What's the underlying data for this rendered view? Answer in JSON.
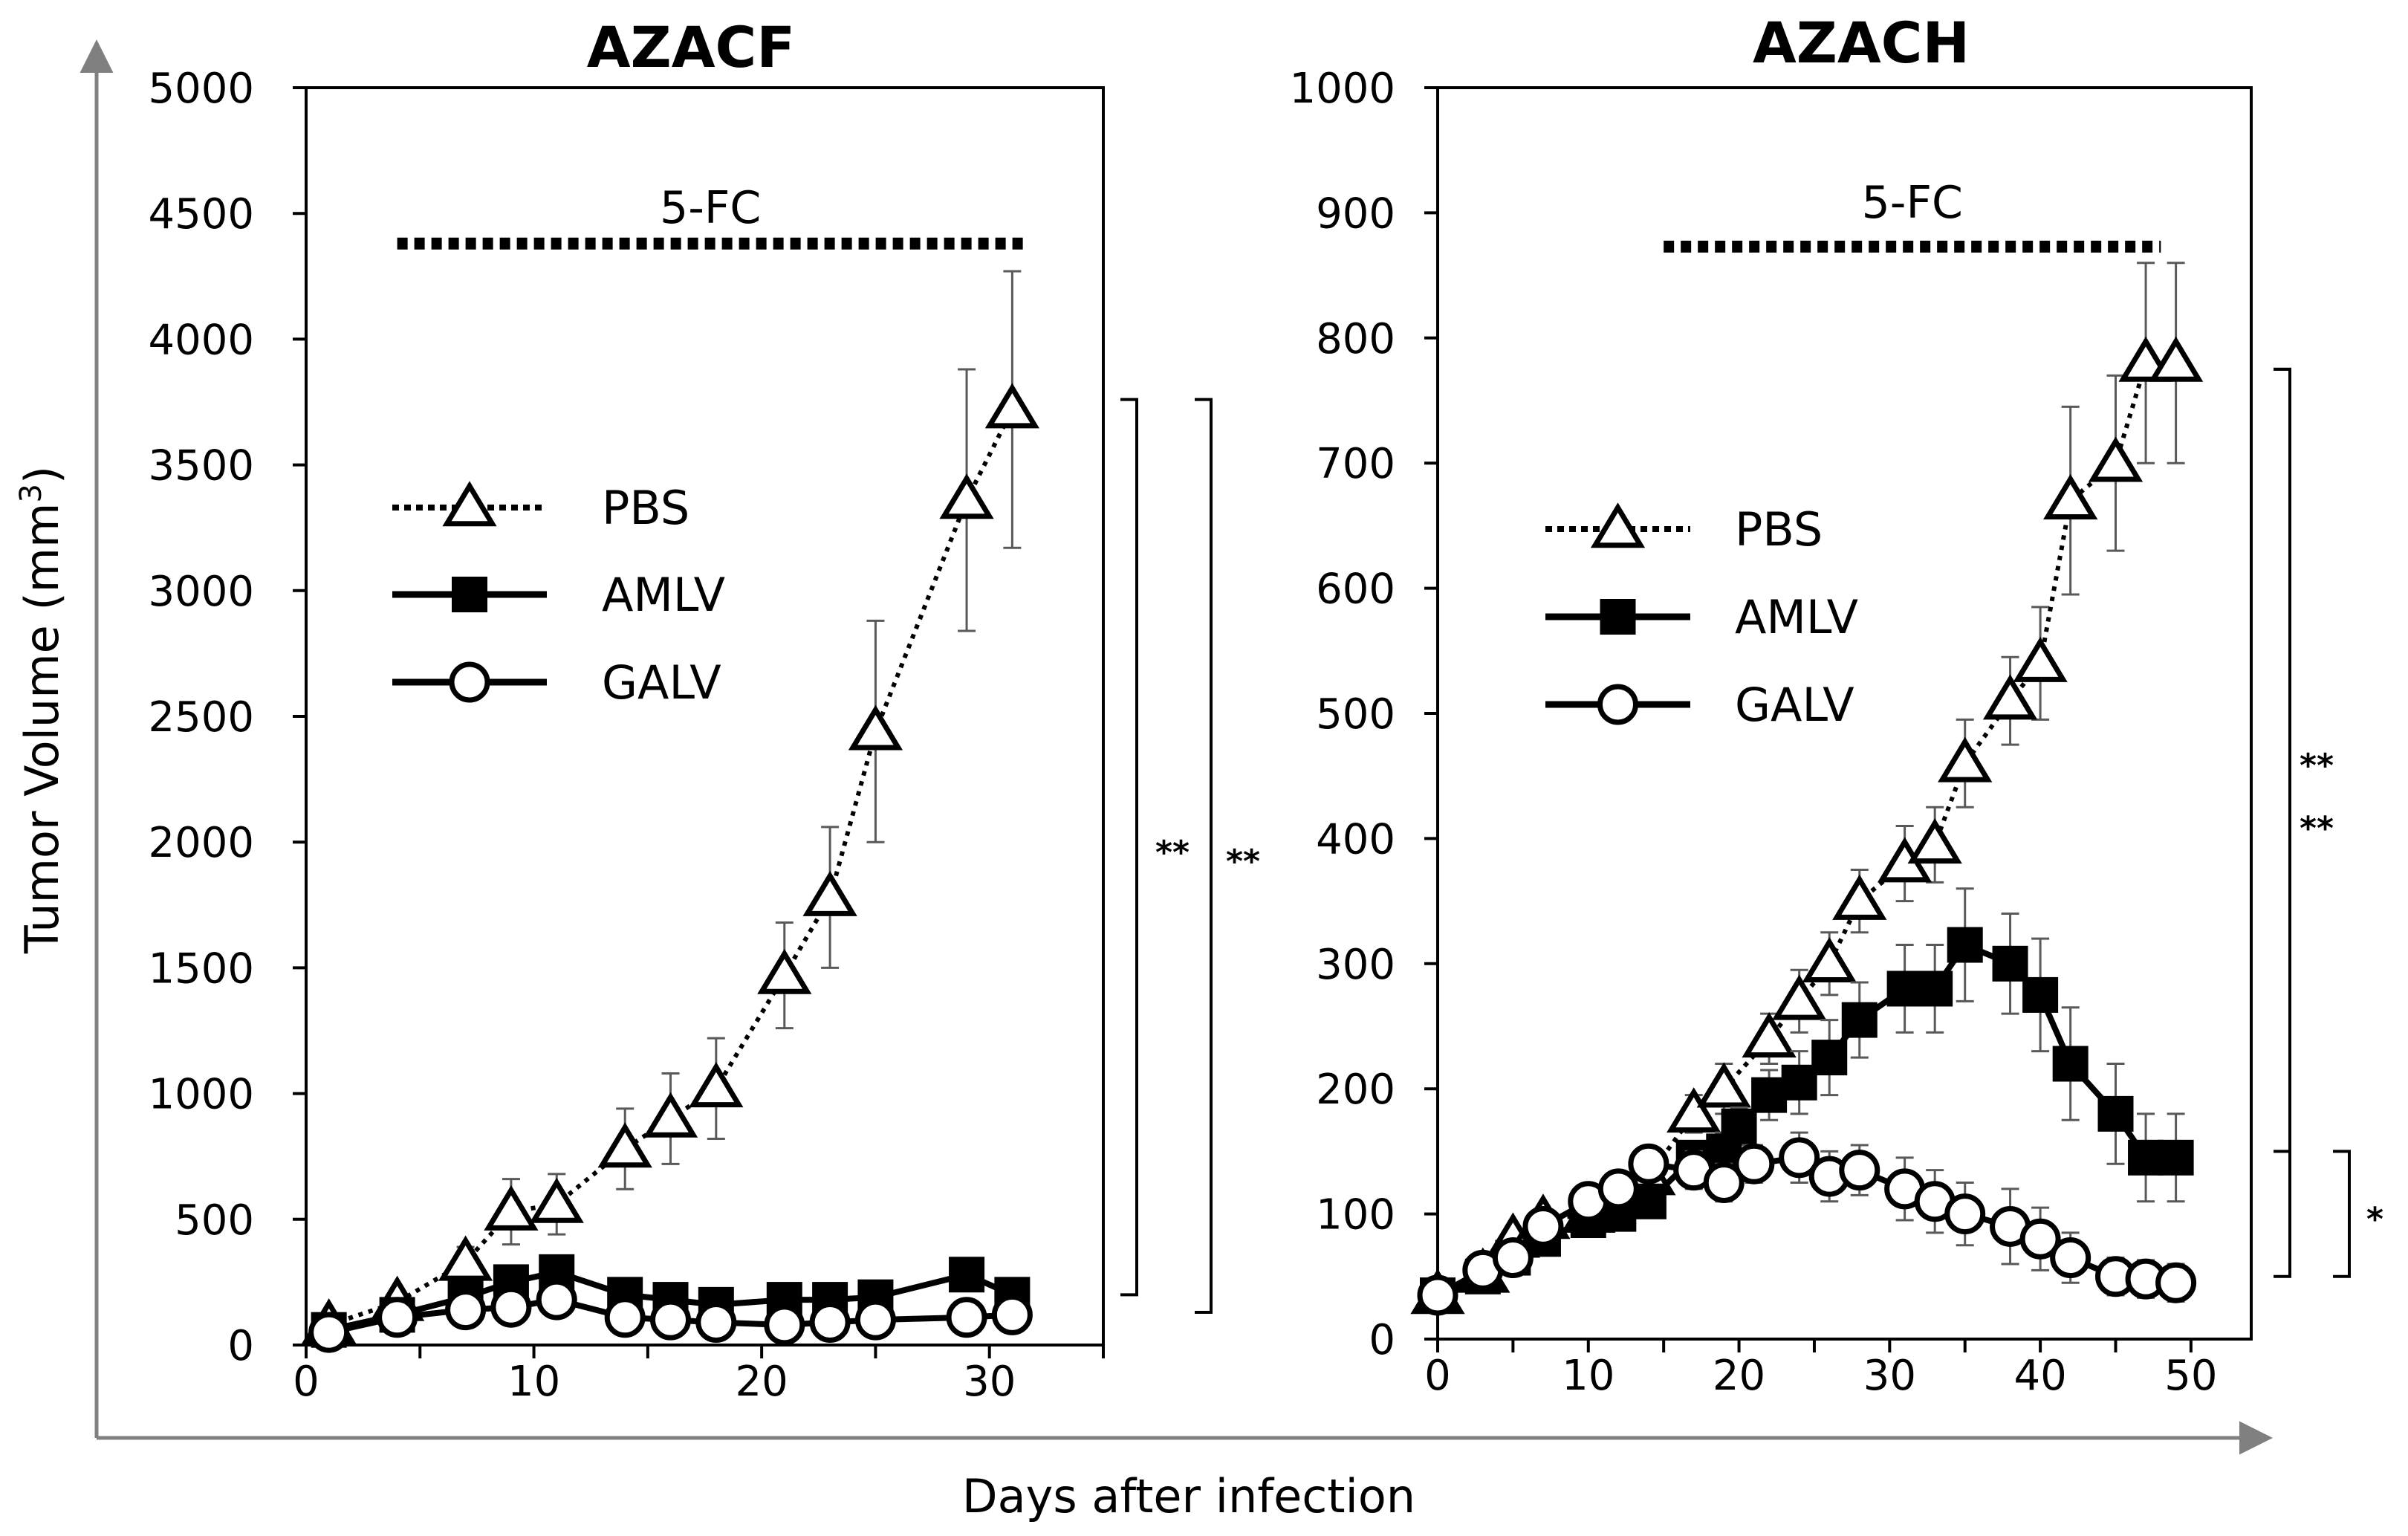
{
  "figure": {
    "ylabel": "Tumor Volume (mm³)",
    "ylabel_main": "Tumor Volume (mm",
    "ylabel_sup": "3",
    "ylabel_close": ")",
    "xlabel": "Days after infection",
    "colors": {
      "ink": "#000000",
      "frame_axis": "#808080",
      "error_bar": "#595959"
    }
  },
  "chart_data": [
    {
      "type": "line",
      "title": "AZACF",
      "xlabel": "Days after infection",
      "ylabel": "Tumor Volume (mm³)",
      "xlim": [
        0,
        35
      ],
      "ylim": [
        0,
        5000
      ],
      "xticks": [
        0,
        10,
        20,
        30
      ],
      "yticks": [
        0,
        500,
        1000,
        1500,
        2000,
        2500,
        3000,
        3500,
        4000,
        4500,
        5000
      ],
      "treatment": {
        "label": "5-FC",
        "x_range": [
          4,
          31.5
        ],
        "y": 4380
      },
      "legend": {
        "position": "left",
        "entries": [
          "PBS",
          "AMLV",
          "GALV"
        ]
      },
      "series": [
        {
          "name": "PBS",
          "marker": "triangle-open",
          "line": "dotted",
          "x": [
            1,
            4,
            7,
            9,
            11,
            14,
            16,
            18,
            21,
            23,
            25,
            29,
            31
          ],
          "y": [
            80,
            170,
            330,
            530,
            560,
            780,
            900,
            1020,
            1470,
            1780,
            2440,
            3360,
            3720
          ],
          "err": [
            0,
            30,
            60,
            130,
            120,
            160,
            180,
            200,
            210,
            280,
            440,
            520,
            550
          ]
        },
        {
          "name": "AMLV",
          "marker": "square-filled",
          "line": "solid",
          "x": [
            1,
            4,
            7,
            9,
            11,
            14,
            16,
            18,
            21,
            23,
            25,
            29,
            31
          ],
          "y": [
            60,
            120,
            190,
            250,
            290,
            200,
            180,
            160,
            180,
            180,
            190,
            280,
            200
          ],
          "err": [
            0,
            0,
            0,
            0,
            0,
            0,
            0,
            0,
            0,
            0,
            0,
            0,
            0
          ]
        },
        {
          "name": "GALV",
          "marker": "circle-open",
          "line": "solid",
          "x": [
            1,
            4,
            7,
            9,
            11,
            14,
            16,
            18,
            21,
            23,
            25,
            29,
            31
          ],
          "y": [
            50,
            110,
            140,
            150,
            180,
            110,
            100,
            90,
            80,
            90,
            100,
            110,
            120
          ],
          "err": [
            0,
            0,
            0,
            0,
            0,
            0,
            0,
            0,
            0,
            0,
            0,
            0,
            0
          ]
        }
      ],
      "significance": [
        {
          "label": "**",
          "from": "PBS",
          "to": "AMLV",
          "y_range": [
            200,
            3760
          ]
        },
        {
          "label": "**",
          "from": "PBS",
          "to": "GALV",
          "y_range": [
            130,
            3760
          ]
        }
      ]
    },
    {
      "type": "line",
      "title": "AZACH",
      "xlabel": "Days after infection",
      "ylabel": "Tumor Volume (mm³)",
      "xlim": [
        0,
        54
      ],
      "ylim": [
        0,
        1000
      ],
      "xticks": [
        0,
        10,
        20,
        30,
        40,
        50
      ],
      "yticks": [
        0,
        100,
        200,
        300,
        400,
        500,
        600,
        700,
        800,
        900,
        1000
      ],
      "treatment": {
        "label": "5-FC",
        "x_range": [
          15,
          48
        ],
        "y": 873
      },
      "legend": {
        "position": "left",
        "entries": [
          "PBS",
          "AMLV",
          "GALV"
        ]
      },
      "series": [
        {
          "name": "PBS",
          "marker": "triangle-open",
          "line": "dotted",
          "x": [
            0,
            3,
            5,
            7,
            10,
            12,
            14,
            17,
            19,
            22,
            24,
            26,
            28,
            31,
            33,
            35,
            38,
            40,
            42,
            45,
            47,
            49
          ],
          "y": [
            35,
            52,
            80,
            95,
            100,
            115,
            130,
            180,
            200,
            240,
            270,
            300,
            350,
            380,
            395,
            460,
            510,
            540,
            670,
            700,
            780,
            780
          ],
          "err": [
            0,
            0,
            0,
            0,
            0,
            0,
            10,
            15,
            20,
            20,
            25,
            25,
            25,
            30,
            30,
            35,
            35,
            45,
            75,
            70,
            80,
            80
          ]
        },
        {
          "name": "AMLV",
          "marker": "square-filled",
          "line": "solid",
          "x": [
            0,
            3,
            5,
            7,
            10,
            12,
            14,
            17,
            19,
            20,
            22,
            24,
            26,
            28,
            31,
            33,
            35,
            38,
            40,
            42,
            45,
            47,
            49
          ],
          "y": [
            35,
            50,
            65,
            80,
            95,
            100,
            110,
            145,
            150,
            170,
            195,
            205,
            225,
            255,
            280,
            280,
            315,
            300,
            275,
            220,
            180,
            145,
            145
          ],
          "err": [
            0,
            0,
            0,
            0,
            0,
            0,
            0,
            10,
            15,
            15,
            20,
            25,
            30,
            30,
            35,
            35,
            45,
            40,
            45,
            45,
            40,
            35,
            35
          ]
        },
        {
          "name": "GALV",
          "marker": "circle-open",
          "line": "solid",
          "x": [
            0,
            3,
            5,
            7,
            10,
            12,
            14,
            17,
            19,
            21,
            24,
            26,
            28,
            31,
            33,
            35,
            38,
            40,
            42,
            45,
            47,
            49
          ],
          "y": [
            35,
            55,
            65,
            90,
            110,
            120,
            140,
            135,
            125,
            140,
            145,
            130,
            135,
            120,
            110,
            100,
            90,
            80,
            65,
            50,
            48,
            45
          ],
          "err": [
            0,
            0,
            0,
            0,
            0,
            0,
            0,
            15,
            15,
            15,
            20,
            20,
            20,
            25,
            25,
            25,
            30,
            25,
            20,
            15,
            15,
            15
          ]
        }
      ],
      "significance": [
        {
          "label": "**",
          "from": "PBS",
          "to": "AMLV",
          "y_range": [
            150,
            775
          ]
        },
        {
          "label": "*",
          "from": "AMLV",
          "to": "GALV",
          "y_range": [
            50,
            150
          ]
        },
        {
          "label": "**",
          "from": "PBS",
          "to": "GALV",
          "y_range": [
            50,
            775
          ]
        }
      ]
    }
  ]
}
